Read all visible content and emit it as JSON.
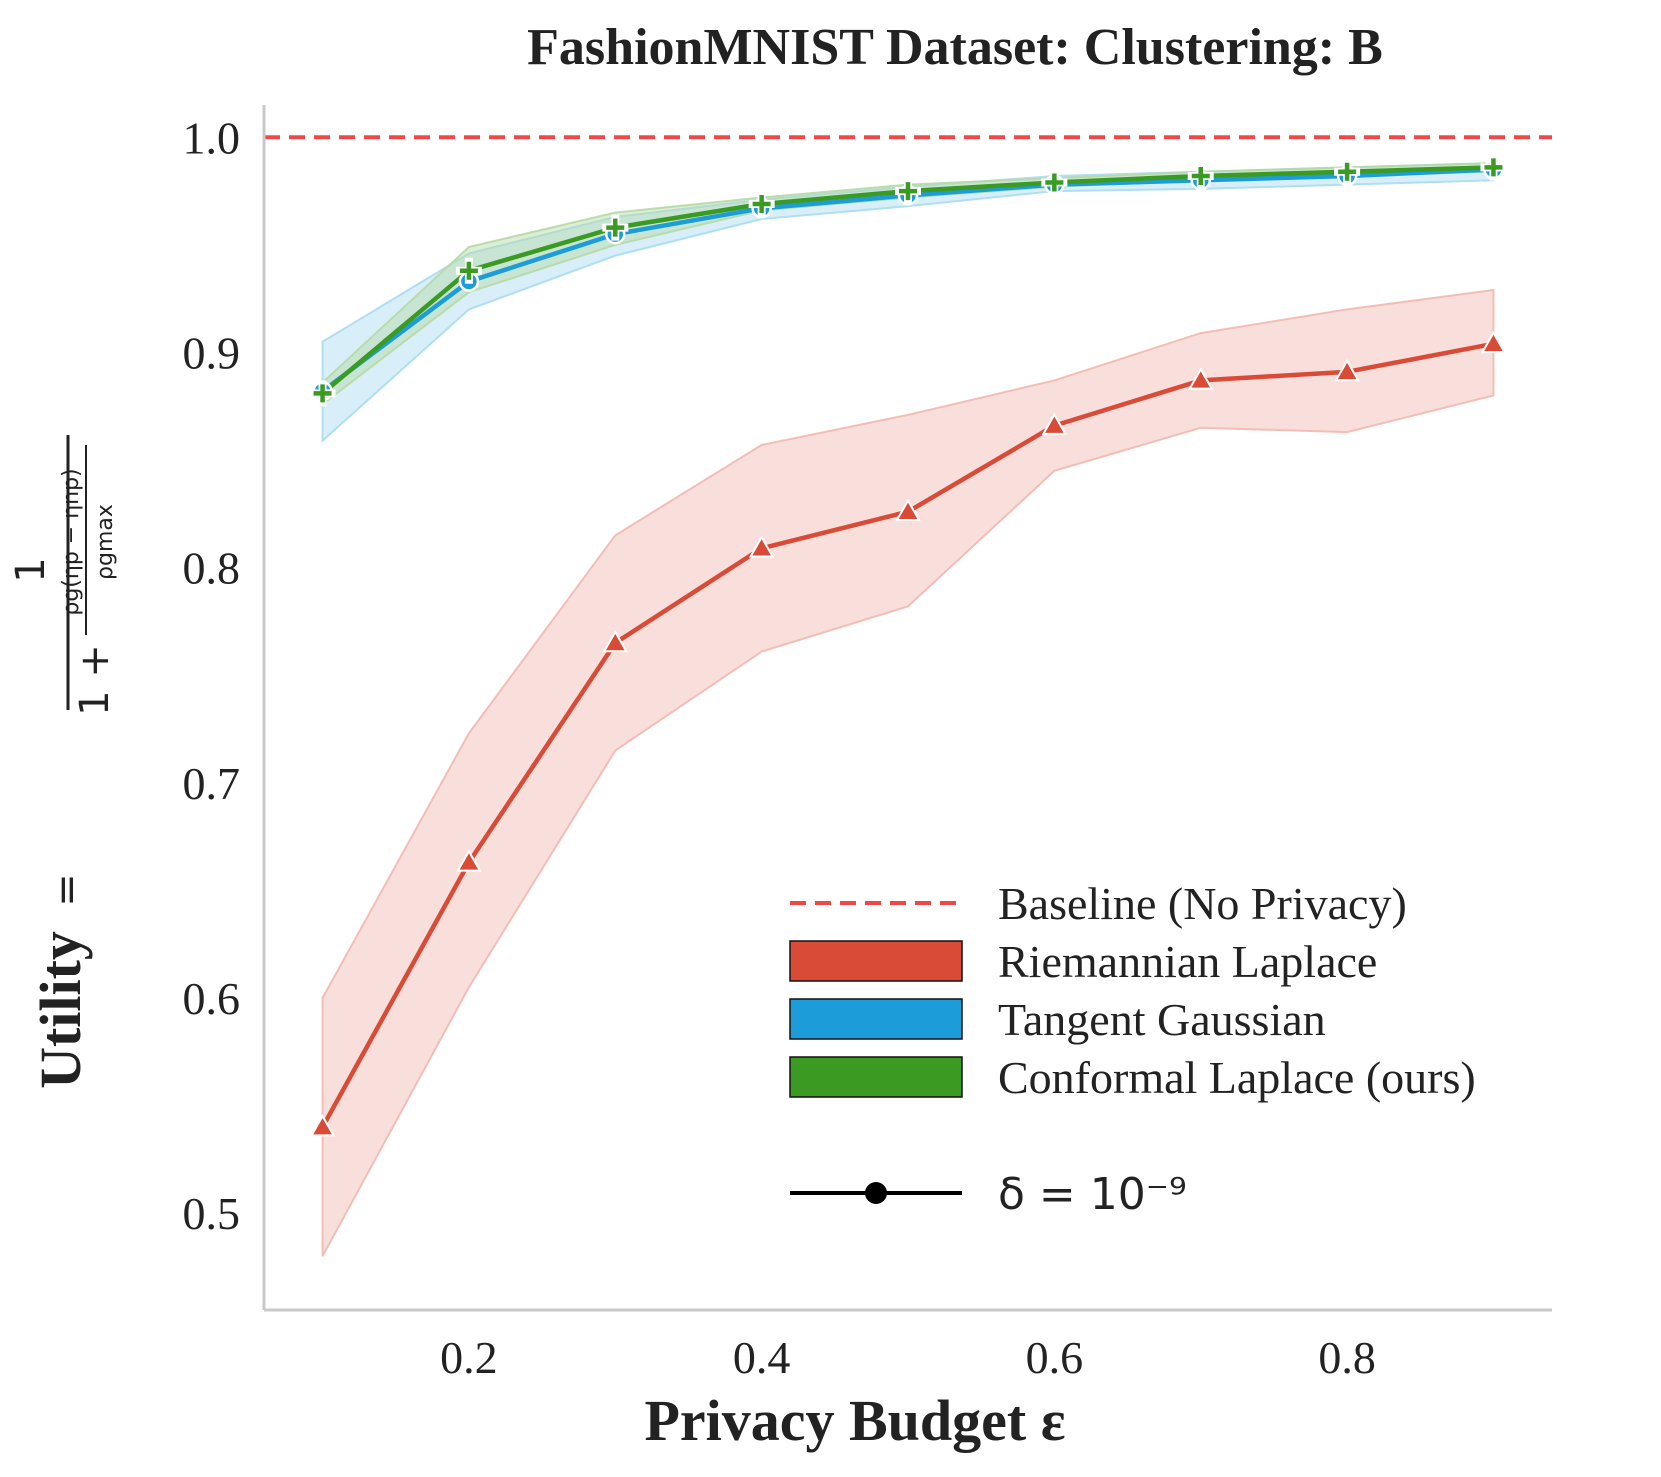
{
  "chart_data": {
    "type": "line",
    "title": "FashionMNIST Dataset: Clustering: B",
    "xlabel": "Privacy Budget ε",
    "ylabel": {
      "main": "Utility",
      "equals": "=",
      "numerator": "1",
      "denominator_lead": "1 +",
      "inner_numerator": "ρg(ηp − ηnp)",
      "inner_denominator": "ρgmax"
    },
    "xlim": [
      0.06,
      0.94
    ],
    "ylim": [
      0.455,
      1.015
    ],
    "xticks": [
      0.2,
      0.4,
      0.6,
      0.8
    ],
    "xtick_labels": [
      "0.2",
      "0.4",
      "0.6",
      "0.8"
    ],
    "yticks": [
      0.5,
      0.6,
      0.7,
      0.8,
      0.9,
      1.0
    ],
    "ytick_labels": [
      "0.5",
      "0.6",
      "0.7",
      "0.8",
      "0.9",
      "1.0"
    ],
    "x": [
      0.1,
      0.2,
      0.3,
      0.4,
      0.5,
      0.6,
      0.7,
      0.8,
      0.9
    ],
    "baseline": {
      "name": "Baseline (No Privacy)",
      "value": 1.0,
      "color": "#f04848"
    },
    "series": [
      {
        "name": "Riemannian Laplace",
        "color": "#d94b36",
        "band_color": "#f2b8b0",
        "marker": "triangle",
        "values": [
          0.54,
          0.663,
          0.765,
          0.809,
          0.826,
          0.866,
          0.887,
          0.891,
          0.904
        ],
        "lower": [
          0.48,
          0.605,
          0.715,
          0.761,
          0.782,
          0.845,
          0.865,
          0.863,
          0.88
        ],
        "upper": [
          0.6,
          0.723,
          0.815,
          0.857,
          0.871,
          0.887,
          0.909,
          0.92,
          0.929
        ]
      },
      {
        "name": "Tangent Gaussian",
        "color": "#1c9dd9",
        "band_color": "#a8dcf2",
        "marker": "circle",
        "values": [
          0.882,
          0.933,
          0.955,
          0.967,
          0.973,
          0.978,
          0.98,
          0.982,
          0.985
        ],
        "lower": [
          0.859,
          0.92,
          0.945,
          0.962,
          0.968,
          0.975,
          0.976,
          0.978,
          0.98
        ],
        "upper": [
          0.905,
          0.946,
          0.963,
          0.971,
          0.977,
          0.982,
          0.984,
          0.986,
          0.988
        ]
      },
      {
        "name": "Conformal Laplace (ours)",
        "color": "#3a9a22",
        "band_color": "#b5d9a4",
        "marker": "plus",
        "values": [
          0.881,
          0.938,
          0.958,
          0.969,
          0.975,
          0.979,
          0.982,
          0.984,
          0.986
        ],
        "lower": [
          0.876,
          0.928,
          0.95,
          0.966,
          0.972,
          0.977,
          0.98,
          0.982,
          0.984
        ],
        "upper": [
          0.886,
          0.949,
          0.965,
          0.972,
          0.978,
          0.981,
          0.984,
          0.986,
          0.988
        ]
      }
    ],
    "legend": {
      "position": "lower-right",
      "delta_label": "δ = 10⁻⁹"
    },
    "grid": false
  }
}
